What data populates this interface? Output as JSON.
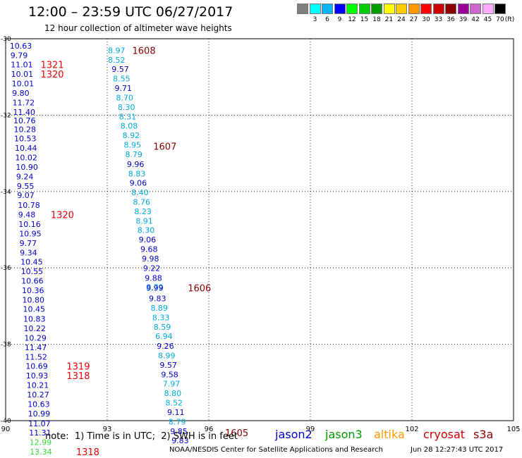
{
  "header": {
    "title": "12:00 – 23:59 UTC 06/27/2017",
    "subtitle": "12 hour collection of altimeter wave heights"
  },
  "color_scale": {
    "unit": "(ft)",
    "swatches": [
      {
        "label": "",
        "color": "#808080"
      },
      {
        "label": "3",
        "color": "#00ffff"
      },
      {
        "label": "6",
        "color": "#00b4ff"
      },
      {
        "label": "9",
        "color": "#0000ff"
      },
      {
        "label": "12",
        "color": "#00ff00"
      },
      {
        "label": "15",
        "color": "#00cc00"
      },
      {
        "label": "18",
        "color": "#009900"
      },
      {
        "label": "21",
        "color": "#ffff00"
      },
      {
        "label": "24",
        "color": "#ffcc00"
      },
      {
        "label": "27",
        "color": "#ff9900"
      },
      {
        "label": "30",
        "color": "#ff0000"
      },
      {
        "label": "33",
        "color": "#cc0000"
      },
      {
        "label": "36",
        "color": "#8b0000"
      },
      {
        "label": "39",
        "color": "#990099"
      },
      {
        "label": "42",
        "color": "#cc66cc"
      },
      {
        "label": "45",
        "color": "#ffaaff"
      },
      {
        "label": "70",
        "color": "#000000"
      }
    ]
  },
  "footer": {
    "note": "note:  1) Time is in UTC;  2) SWH is in feet",
    "credit": "NOAA/NESDIS Center for Satellite Applications and Research",
    "generated": "Jun 28 12:27:43 UTC 2017",
    "satellites": [
      {
        "name": "jason2",
        "color": "#0000cc"
      },
      {
        "name": "jason3",
        "color": "#009900"
      },
      {
        "name": "altika",
        "color": "#ff9900"
      },
      {
        "name": "cryosat",
        "color": "#cc0000"
      },
      {
        "name": "s3a",
        "color": "#8b0000"
      }
    ]
  },
  "chart_data": {
    "type": "scatter",
    "title": "12:00 – 23:59 UTC 06/27/2017",
    "xlabel": "",
    "ylabel": "",
    "xlim": [
      90,
      105
    ],
    "ylim": [
      -40,
      -30
    ],
    "x_ticks": [
      "90",
      "93",
      "96",
      "99",
      "102",
      "105"
    ],
    "y_ticks": [
      "-30",
      "-32",
      "-34",
      "-36",
      "-38",
      "-40"
    ],
    "grid": true,
    "colors": {
      "jason2_dark": "#0000cc",
      "jason2_light": "#00aadd",
      "jason3": "#33dd33",
      "cryosat": "#ee0000",
      "s3a": "#880000"
    },
    "tracks": [
      {
        "satellite": "jason2",
        "points": [
          {
            "lon": 90.12,
            "lat": -30.18,
            "value": "10.63",
            "color": "#0000cc"
          },
          {
            "lon": 90.14,
            "lat": -30.43,
            "value": "9.79",
            "color": "#0000cc"
          },
          {
            "lon": 90.15,
            "lat": -30.67,
            "value": "11.01",
            "color": "#0000cc"
          },
          {
            "lon": 90.16,
            "lat": -30.92,
            "value": "10.01",
            "color": "#0000cc"
          },
          {
            "lon": 90.18,
            "lat": -31.17,
            "value": "10.01",
            "color": "#0000cc"
          },
          {
            "lon": 90.19,
            "lat": -31.42,
            "value": "9.80",
            "color": "#0000cc"
          },
          {
            "lon": 90.2,
            "lat": -31.67,
            "value": "11.72",
            "color": "#0000cc"
          },
          {
            "lon": 90.22,
            "lat": -31.92,
            "value": "11.40",
            "color": "#0000cc"
          },
          {
            "lon": 90.23,
            "lat": -32.14,
            "value": "10.76",
            "color": "#0000cc"
          },
          {
            "lon": 90.24,
            "lat": -32.37,
            "value": "10.28",
            "color": "#0000cc"
          },
          {
            "lon": 90.25,
            "lat": -32.61,
            "value": "10.53",
            "color": "#0000cc"
          },
          {
            "lon": 90.27,
            "lat": -32.86,
            "value": "10.44",
            "color": "#0000cc"
          },
          {
            "lon": 90.28,
            "lat": -33.11,
            "value": "10.02",
            "color": "#0000cc"
          },
          {
            "lon": 90.3,
            "lat": -33.36,
            "value": "10.90",
            "color": "#0000cc"
          },
          {
            "lon": 90.31,
            "lat": -33.61,
            "value": "9.24",
            "color": "#0000cc"
          },
          {
            "lon": 90.33,
            "lat": -33.86,
            "value": "9.55",
            "color": "#0000cc"
          },
          {
            "lon": 90.34,
            "lat": -34.1,
            "value": "9.07",
            "color": "#0000cc"
          },
          {
            "lon": 90.36,
            "lat": -34.35,
            "value": "10.78",
            "color": "#0000cc"
          },
          {
            "lon": 90.37,
            "lat": -34.6,
            "value": "9.48",
            "color": "#0000cc"
          },
          {
            "lon": 90.38,
            "lat": -34.85,
            "value": "10.16",
            "color": "#0000cc"
          },
          {
            "lon": 90.4,
            "lat": -35.1,
            "value": "10.95",
            "color": "#0000cc"
          },
          {
            "lon": 90.41,
            "lat": -35.35,
            "value": "9.77",
            "color": "#0000cc"
          },
          {
            "lon": 90.42,
            "lat": -35.6,
            "value": "9.34",
            "color": "#0000cc"
          },
          {
            "lon": 90.44,
            "lat": -35.84,
            "value": "10.45",
            "color": "#0000cc"
          },
          {
            "lon": 90.45,
            "lat": -36.09,
            "value": "10.55",
            "color": "#0000cc"
          },
          {
            "lon": 90.46,
            "lat": -36.34,
            "value": "10.66",
            "color": "#0000cc"
          },
          {
            "lon": 90.48,
            "lat": -36.59,
            "value": "10.36",
            "color": "#0000cc"
          },
          {
            "lon": 90.49,
            "lat": -36.84,
            "value": "10.80",
            "color": "#0000cc"
          },
          {
            "lon": 90.51,
            "lat": -37.08,
            "value": "10.45",
            "color": "#0000cc"
          },
          {
            "lon": 90.52,
            "lat": -37.33,
            "value": "10.83",
            "color": "#0000cc"
          },
          {
            "lon": 90.53,
            "lat": -37.58,
            "value": "10.22",
            "color": "#0000cc"
          },
          {
            "lon": 90.55,
            "lat": -37.83,
            "value": "10.29",
            "color": "#0000cc"
          },
          {
            "lon": 90.56,
            "lat": -38.08,
            "value": "11.47",
            "color": "#0000cc"
          },
          {
            "lon": 90.57,
            "lat": -38.33,
            "value": "11.52",
            "color": "#0000cc"
          },
          {
            "lon": 90.59,
            "lat": -38.57,
            "value": "10.69",
            "color": "#0000cc"
          },
          {
            "lon": 90.6,
            "lat": -38.82,
            "value": "10.93",
            "color": "#0000cc"
          },
          {
            "lon": 90.62,
            "lat": -39.07,
            "value": "10.21",
            "color": "#0000cc"
          },
          {
            "lon": 90.63,
            "lat": -39.32,
            "value": "10.27",
            "color": "#0000cc"
          },
          {
            "lon": 90.65,
            "lat": -39.57,
            "value": "10.63",
            "color": "#0000cc"
          },
          {
            "lon": 90.66,
            "lat": -39.82,
            "value": "10.99",
            "color": "#0000cc"
          },
          {
            "lon": 90.67,
            "lat": -40.07,
            "value": "11.07",
            "color": "#0000cc"
          },
          {
            "lon": 90.69,
            "lat": -40.31,
            "value": "11.31",
            "color": "#0000cc"
          },
          {
            "lon": 90.7,
            "lat": -40.56,
            "value": "12.99",
            "color": "#33dd33"
          },
          {
            "lon": 90.71,
            "lat": -40.81,
            "value": "13.34",
            "color": "#33dd33"
          }
        ]
      },
      {
        "satellite": "jason2",
        "points": [
          {
            "lon": 93.02,
            "lat": -30.3,
            "value": "8.97",
            "color": "#00aadd"
          },
          {
            "lon": 93.02,
            "lat": -30.55,
            "value": "8.52",
            "color": "#00aadd"
          },
          {
            "lon": 93.13,
            "lat": -30.79,
            "value": "9.57",
            "color": "#0000cc"
          },
          {
            "lon": 93.17,
            "lat": -31.04,
            "value": "8.55",
            "color": "#00aadd"
          },
          {
            "lon": 93.22,
            "lat": -31.29,
            "value": "9.71",
            "color": "#0000cc"
          },
          {
            "lon": 93.26,
            "lat": -31.54,
            "value": "8.70",
            "color": "#00aadd"
          },
          {
            "lon": 93.31,
            "lat": -31.79,
            "value": "8.30",
            "color": "#00aadd"
          },
          {
            "lon": 93.35,
            "lat": -32.04,
            "value": "8.31",
            "color": "#00aadd"
          },
          {
            "lon": 93.39,
            "lat": -32.28,
            "value": "8.08",
            "color": "#00aadd"
          },
          {
            "lon": 93.45,
            "lat": -32.53,
            "value": "8.92",
            "color": "#00aadd"
          },
          {
            "lon": 93.49,
            "lat": -32.78,
            "value": "8.95",
            "color": "#00aadd"
          },
          {
            "lon": 93.53,
            "lat": -33.03,
            "value": "8.79",
            "color": "#00aadd"
          },
          {
            "lon": 93.58,
            "lat": -33.28,
            "value": "9.96",
            "color": "#0000cc"
          },
          {
            "lon": 93.62,
            "lat": -33.53,
            "value": "8.83",
            "color": "#00aadd"
          },
          {
            "lon": 93.66,
            "lat": -33.77,
            "value": "9.06",
            "color": "#0000cc"
          },
          {
            "lon": 93.71,
            "lat": -34.02,
            "value": "8.40",
            "color": "#00aadd"
          },
          {
            "lon": 93.76,
            "lat": -34.27,
            "value": "8.76",
            "color": "#00aadd"
          },
          {
            "lon": 93.8,
            "lat": -34.52,
            "value": "8.23",
            "color": "#00aadd"
          },
          {
            "lon": 93.84,
            "lat": -34.77,
            "value": "8.91",
            "color": "#00aadd"
          },
          {
            "lon": 93.89,
            "lat": -35.01,
            "value": "8.30",
            "color": "#00aadd"
          },
          {
            "lon": 93.93,
            "lat": -35.26,
            "value": "9.06",
            "color": "#0000cc"
          },
          {
            "lon": 93.98,
            "lat": -35.51,
            "value": "9.68",
            "color": "#0000cc"
          },
          {
            "lon": 94.02,
            "lat": -35.76,
            "value": "9.98",
            "color": "#0000cc"
          },
          {
            "lon": 94.06,
            "lat": -36.01,
            "value": "9.22",
            "color": "#0000cc"
          },
          {
            "lon": 94.11,
            "lat": -36.26,
            "value": "9.88",
            "color": "#0000cc"
          },
          {
            "lon": 94.15,
            "lat": -36.5,
            "value": "8.79",
            "color": "#00aadd"
          },
          {
            "lon": 94.15,
            "lat": -36.52,
            "value": "9.99",
            "color": "#0000cc"
          },
          {
            "lon": 94.23,
            "lat": -36.8,
            "value": "9.83",
            "color": "#0000cc"
          },
          {
            "lon": 94.28,
            "lat": -37.05,
            "value": "8.89",
            "color": "#00aadd"
          },
          {
            "lon": 94.33,
            "lat": -37.3,
            "value": "8.33",
            "color": "#00aadd"
          },
          {
            "lon": 94.37,
            "lat": -37.55,
            "value": "8.59",
            "color": "#00aadd"
          },
          {
            "lon": 94.42,
            "lat": -37.79,
            "value": "6.94",
            "color": "#00aadd"
          },
          {
            "lon": 94.46,
            "lat": -38.04,
            "value": "9.26",
            "color": "#0000cc"
          },
          {
            "lon": 94.5,
            "lat": -38.29,
            "value": "8.99",
            "color": "#00aadd"
          },
          {
            "lon": 94.55,
            "lat": -38.54,
            "value": "9.57",
            "color": "#0000cc"
          },
          {
            "lon": 94.59,
            "lat": -38.79,
            "value": "9.58",
            "color": "#0000cc"
          },
          {
            "lon": 94.64,
            "lat": -39.03,
            "value": "7.97",
            "color": "#00aadd"
          },
          {
            "lon": 94.68,
            "lat": -39.28,
            "value": "8.80",
            "color": "#00aadd"
          },
          {
            "lon": 94.72,
            "lat": -39.53,
            "value": "8.52",
            "color": "#00aadd"
          },
          {
            "lon": 94.77,
            "lat": -39.78,
            "value": "9.11",
            "color": "#0000cc"
          },
          {
            "lon": 94.81,
            "lat": -40.03,
            "value": "8.79",
            "color": "#00aadd"
          },
          {
            "lon": 94.86,
            "lat": -40.28,
            "value": "9.85",
            "color": "#0000cc"
          },
          {
            "lon": 94.9,
            "lat": -40.52,
            "value": "9.83",
            "color": "#0000cc"
          }
        ]
      }
    ],
    "time_labels": [
      {
        "lon": 91.03,
        "lat": -30.67,
        "text": "1321",
        "color": "#ee0000"
      },
      {
        "lon": 91.03,
        "lat": -30.92,
        "text": "1320",
        "color": "#ee0000"
      },
      {
        "lon": 91.33,
        "lat": -34.6,
        "text": "1320",
        "color": "#ee0000"
      },
      {
        "lon": 91.8,
        "lat": -38.57,
        "text": "1319",
        "color": "#ee0000"
      },
      {
        "lon": 91.8,
        "lat": -38.82,
        "text": "1318",
        "color": "#ee0000"
      },
      {
        "lon": 92.08,
        "lat": -40.81,
        "text": "1318",
        "color": "#ee0000"
      },
      {
        "lon": 93.74,
        "lat": -30.3,
        "text": "1608",
        "color": "#880000"
      },
      {
        "lon": 94.36,
        "lat": -32.81,
        "text": "1607",
        "color": "#880000"
      },
      {
        "lon": 95.38,
        "lat": -36.52,
        "text": "1606",
        "color": "#880000"
      },
      {
        "lon": 96.48,
        "lat": -40.31,
        "text": "1605",
        "color": "#880000"
      }
    ]
  }
}
